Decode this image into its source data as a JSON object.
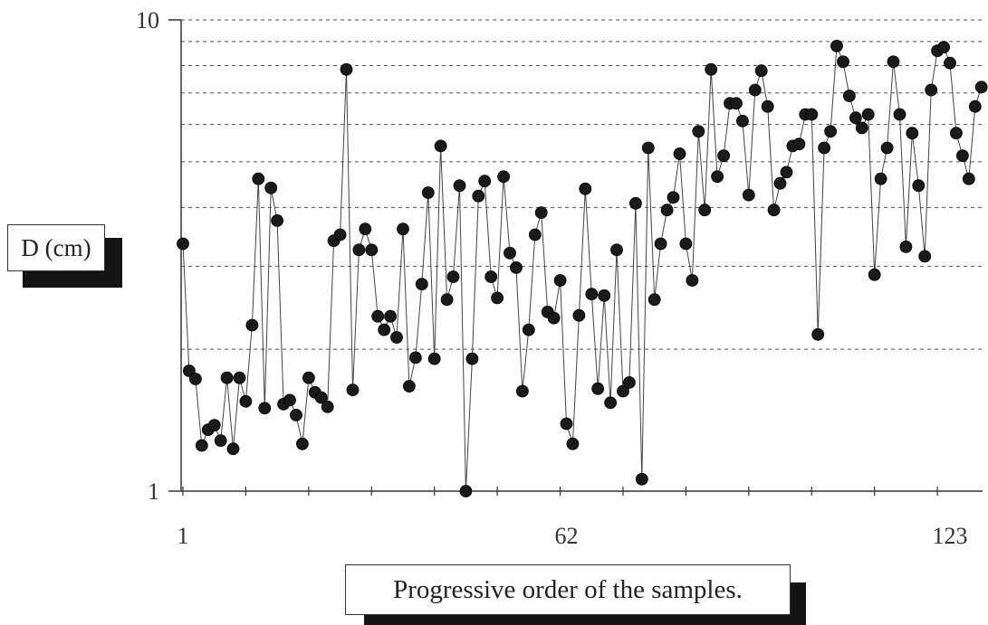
{
  "chart_data": {
    "type": "line",
    "xlabel": "Progressive order of the samples.",
    "ylabel": "D (cm)",
    "y_scale": "log",
    "ylim": [
      1,
      10
    ],
    "xlim": [
      1,
      124
    ],
    "y_ticks": [
      "1",
      "10"
    ],
    "x_ticks": [
      "1",
      "62",
      "123"
    ],
    "x_tick_values": [
      1,
      62,
      123
    ],
    "grid": "horizontal dashed lines at log minor ticks",
    "markers": "filled circles",
    "series": [
      {
        "values": [
          3.35,
          1.8,
          1.73,
          1.25,
          1.35,
          1.38,
          1.28,
          1.74,
          1.23,
          1.74,
          1.55,
          2.25,
          4.6,
          1.5,
          4.4,
          3.75,
          1.53,
          1.56,
          1.45,
          1.26,
          1.74,
          1.62,
          1.58,
          1.51,
          3.4,
          3.5,
          7.85,
          1.64,
          3.25,
          3.6,
          3.25,
          2.35,
          2.2,
          2.35,
          2.12,
          3.6,
          1.67,
          1.92,
          2.75,
          4.3,
          1.91,
          5.4,
          2.55,
          2.85,
          4.45,
          1.0,
          1.91,
          4.23,
          4.55,
          2.85,
          2.57,
          4.65,
          3.2,
          2.98,
          1.63,
          2.2,
          3.5,
          3.9,
          2.4,
          2.33,
          2.8,
          1.39,
          1.26,
          2.36,
          4.38,
          2.62,
          1.65,
          2.6,
          1.54,
          3.25,
          1.63,
          1.7,
          4.08,
          1.06,
          5.35,
          2.55,
          3.35,
          3.95,
          4.2,
          5.2,
          3.35,
          2.8,
          5.8,
          3.95,
          7.85,
          4.65,
          5.15,
          6.65,
          6.65,
          6.1,
          4.25,
          7.1,
          7.8,
          6.55,
          3.95,
          4.5,
          4.75,
          5.4,
          5.45,
          6.3,
          6.3,
          2.15,
          5.35,
          5.8,
          8.8,
          8.15,
          6.9,
          6.2,
          5.9,
          6.3,
          2.88,
          4.6,
          5.35,
          8.15,
          6.3,
          3.3,
          5.75,
          4.45,
          3.15,
          7.1,
          8.6,
          8.75,
          8.1,
          5.75,
          5.15,
          4.6,
          6.55,
          7.2
        ]
      }
    ]
  }
}
